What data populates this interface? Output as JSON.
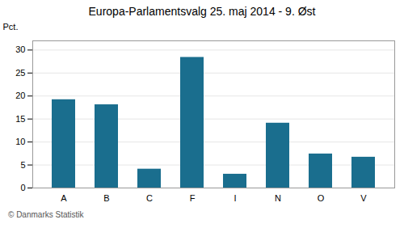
{
  "chart_data": {
    "type": "bar",
    "title": "Europa-Parlamentsvalg 25. maj 2014 - 9. Øst",
    "ylabel": "Pct.",
    "caption": "© Danmarks Statistik",
    "categories": [
      "A",
      "B",
      "C",
      "F",
      "I",
      "N",
      "O",
      "V"
    ],
    "values": [
      19.2,
      18.1,
      4.1,
      28.4,
      3.0,
      14.1,
      7.4,
      6.7
    ],
    "color": "#1a6e8e",
    "ylim": [
      0,
      32
    ],
    "yticks": [
      0,
      5,
      10,
      15,
      20,
      25,
      30
    ],
    "grid": true
  }
}
